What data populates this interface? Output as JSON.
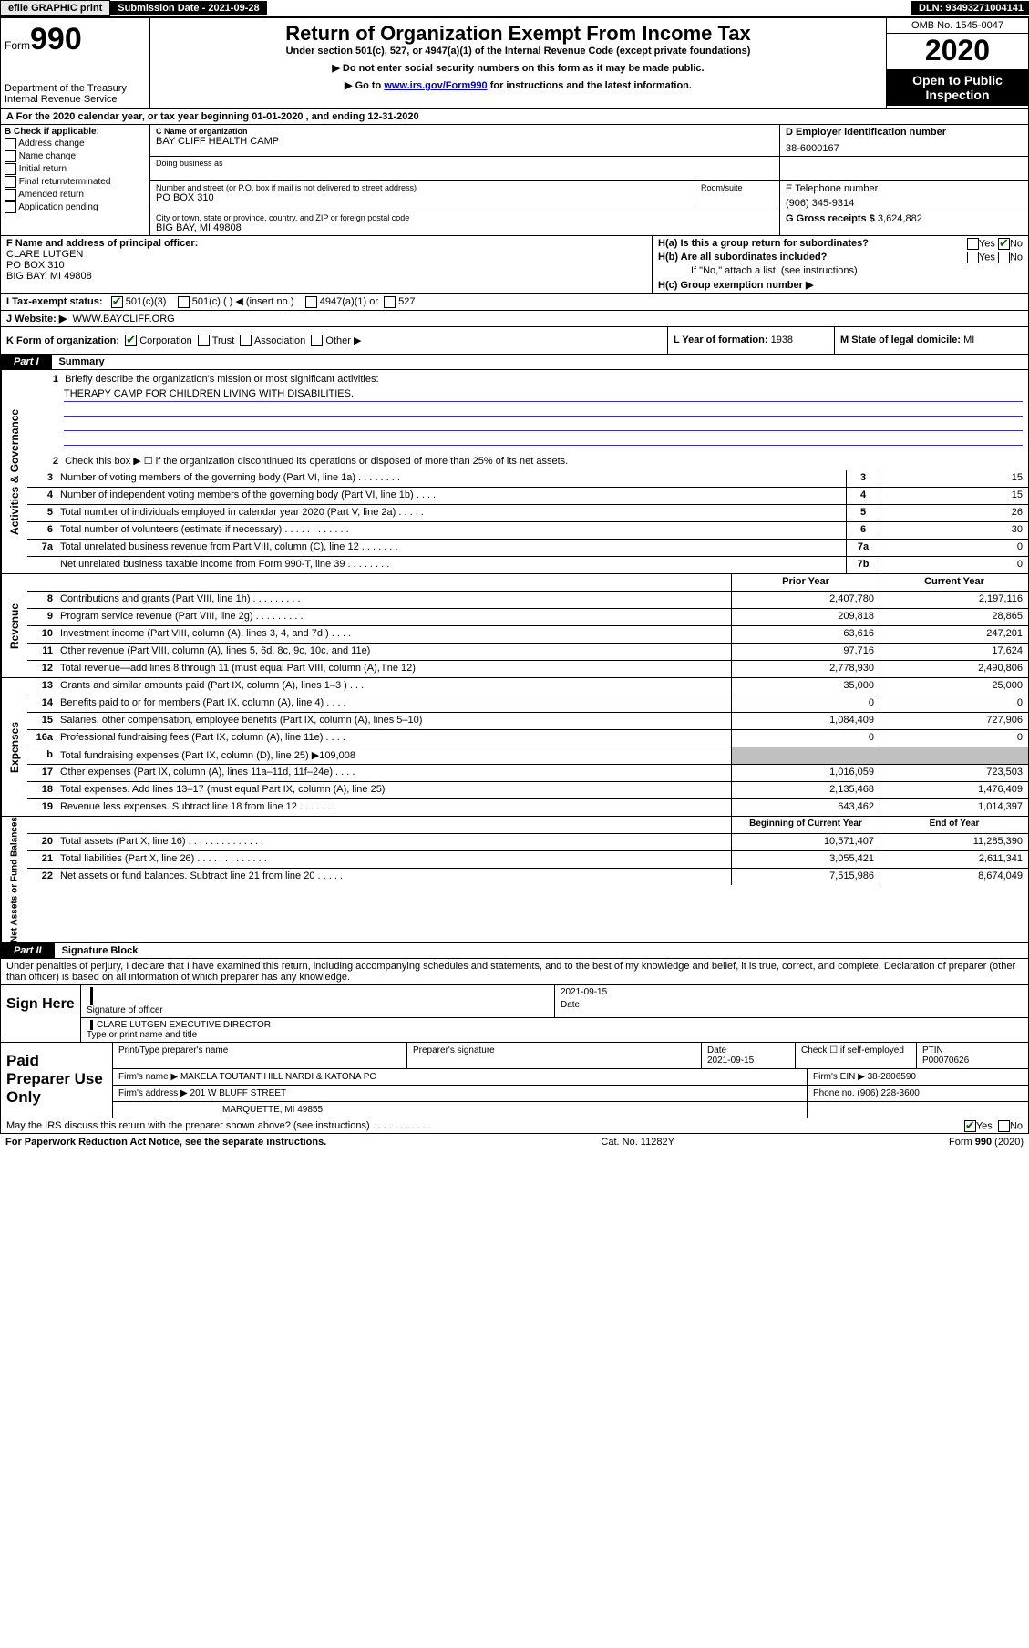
{
  "topbar": {
    "efile": "efile GRAPHIC print",
    "subdate_label": "Submission Date",
    "subdate": "- 2021-09-28",
    "dln_label": "DLN:",
    "dln": "93493271004141"
  },
  "header": {
    "form_label": "Form",
    "form_num": "990",
    "dept": "Department of the Treasury\nInternal Revenue Service",
    "title": "Return of Organization Exempt From Income Tax",
    "sub1": "Under section 501(c), 527, or 4947(a)(1) of the Internal Revenue Code (except private foundations)",
    "sub2": "▶ Do not enter social security numbers on this form as it may be made public.",
    "sub3_pre": "▶ Go to ",
    "sub3_link": "www.irs.gov/Form990",
    "sub3_post": " for instructions and the latest information.",
    "omb": "OMB No. 1545-0047",
    "year": "2020",
    "inspection": "Open to Public Inspection"
  },
  "rowA": "A For the 2020 calendar year, or tax year beginning 01-01-2020   , and ending 12-31-2020",
  "colB": {
    "label": "B Check if applicable:",
    "items": [
      "Address change",
      "Name change",
      "Initial return",
      "Final return/terminated",
      "Amended return",
      "Application pending"
    ]
  },
  "colC": {
    "name_label": "C Name of organization",
    "name": "BAY CLIFF HEALTH CAMP",
    "dba_label": "Doing business as",
    "addr_label": "Number and street (or P.O. box if mail is not delivered to street address)",
    "addr": "PO BOX 310",
    "room_label": "Room/suite",
    "city_label": "City or town, state or province, country, and ZIP or foreign postal code",
    "city": "BIG BAY, MI  49808"
  },
  "colD": {
    "label": "D Employer identification number",
    "value": "38-6000167"
  },
  "colE": {
    "label": "E Telephone number",
    "value": "(906) 345-9314"
  },
  "colG": {
    "label": "G Gross receipts $",
    "value": "3,624,882"
  },
  "colF": {
    "label": "F  Name and address of principal officer:",
    "name": "CLARE LUTGEN",
    "addr1": "PO BOX 310",
    "addr2": "BIG BAY, MI  49808"
  },
  "colH": {
    "a": "H(a)  Is this a group return for subordinates?",
    "b": "H(b)  Are all subordinates included?",
    "b_note": "If \"No,\" attach a list. (see instructions)",
    "c": "H(c)  Group exemption number ▶",
    "yes": "Yes",
    "no": "No"
  },
  "rowI": {
    "label": "I  Tax-exempt status:",
    "opts": [
      "501(c)(3)",
      "501(c) (   ) ◀ (insert no.)",
      "4947(a)(1) or",
      "527"
    ]
  },
  "rowJ": {
    "label": "J  Website: ▶",
    "value": "WWW.BAYCLIFF.ORG"
  },
  "rowK": {
    "label": "K Form of organization:",
    "opts": [
      "Corporation",
      "Trust",
      "Association",
      "Other ▶"
    ]
  },
  "rowL": {
    "label": "L Year of formation:",
    "value": "1938"
  },
  "rowM": {
    "label": "M State of legal domicile:",
    "value": "MI"
  },
  "part1": {
    "tab": "Part I",
    "title": "Summary"
  },
  "governance": {
    "vtab": "Activities & Governance",
    "line1": "Briefly describe the organization's mission or most significant activities:",
    "mission": "THERAPY CAMP FOR CHILDREN LIVING WITH DISABILITIES.",
    "line2": "Check this box ▶ ☐  if the organization discontinued its operations or disposed of more than 25% of its net assets.",
    "rows": [
      {
        "n": "3",
        "t": "Number of voting members of the governing body (Part VI, line 1a)   .   .   .   .   .   .   .   .",
        "c": "3",
        "v": "15"
      },
      {
        "n": "4",
        "t": "Number of independent voting members of the governing body (Part VI, line 1b)   .   .   .   .",
        "c": "4",
        "v": "15"
      },
      {
        "n": "5",
        "t": "Total number of individuals employed in calendar year 2020 (Part V, line 2a)   .   .   .   .   .",
        "c": "5",
        "v": "26"
      },
      {
        "n": "6",
        "t": "Total number of volunteers (estimate if necessary)   .   .   .   .   .   .   .   .   .   .   .   .",
        "c": "6",
        "v": "30"
      },
      {
        "n": "7a",
        "t": "Total unrelated business revenue from Part VIII, column (C), line 12   .   .   .   .   .   .   .",
        "c": "7a",
        "v": "0"
      },
      {
        "n": "",
        "t": "Net unrelated business taxable income from Form 990-T, line 39   .   .   .   .   .   .   .   .",
        "c": "7b",
        "v": "0"
      }
    ]
  },
  "revenue": {
    "vtab": "Revenue",
    "head_prior": "Prior Year",
    "head_current": "Current Year",
    "rows": [
      {
        "n": "8",
        "t": "Contributions and grants (Part VIII, line 1h)   .   .   .   .   .   .   .   .   .",
        "p": "2,407,780",
        "c": "2,197,116"
      },
      {
        "n": "9",
        "t": "Program service revenue (Part VIII, line 2g)   .   .   .   .   .   .   .   .   .",
        "p": "209,818",
        "c": "28,865"
      },
      {
        "n": "10",
        "t": "Investment income (Part VIII, column (A), lines 3, 4, and 7d )   .   .   .   .",
        "p": "63,616",
        "c": "247,201"
      },
      {
        "n": "11",
        "t": "Other revenue (Part VIII, column (A), lines 5, 6d, 8c, 9c, 10c, and 11e)",
        "p": "97,716",
        "c": "17,624"
      },
      {
        "n": "12",
        "t": "Total revenue—add lines 8 through 11 (must equal Part VIII, column (A), line 12)",
        "p": "2,778,930",
        "c": "2,490,806"
      }
    ]
  },
  "expenses": {
    "vtab": "Expenses",
    "rows": [
      {
        "n": "13",
        "t": "Grants and similar amounts paid (Part IX, column (A), lines 1–3 )   .   .   .",
        "p": "35,000",
        "c": "25,000"
      },
      {
        "n": "14",
        "t": "Benefits paid to or for members (Part IX, column (A), line 4)   .   .   .   .",
        "p": "0",
        "c": "0"
      },
      {
        "n": "15",
        "t": "Salaries, other compensation, employee benefits (Part IX, column (A), lines 5–10)",
        "p": "1,084,409",
        "c": "727,906"
      },
      {
        "n": "16a",
        "t": "Professional fundraising fees (Part IX, column (A), line 11e)   .   .   .   .",
        "p": "0",
        "c": "0"
      },
      {
        "n": "b",
        "t": "Total fundraising expenses (Part IX, column (D), line 25) ▶109,008",
        "p": "",
        "c": "",
        "shaded": true
      },
      {
        "n": "17",
        "t": "Other expenses (Part IX, column (A), lines 11a–11d, 11f–24e)   .   .   .   .",
        "p": "1,016,059",
        "c": "723,503"
      },
      {
        "n": "18",
        "t": "Total expenses. Add lines 13–17 (must equal Part IX, column (A), line 25)",
        "p": "2,135,468",
        "c": "1,476,409"
      },
      {
        "n": "19",
        "t": "Revenue less expenses. Subtract line 18 from line 12   .   .   .   .   .   .   .",
        "p": "643,462",
        "c": "1,014,397"
      }
    ]
  },
  "netassets": {
    "vtab": "Net Assets or Fund Balances",
    "head_begin": "Beginning of Current Year",
    "head_end": "End of Year",
    "rows": [
      {
        "n": "20",
        "t": "Total assets (Part X, line 16)   .   .   .   .   .   .   .   .   .   .   .   .   .   .",
        "p": "10,571,407",
        "c": "11,285,390"
      },
      {
        "n": "21",
        "t": "Total liabilities (Part X, line 26)   .   .   .   .   .   .   .   .   .   .   .   .   .",
        "p": "3,055,421",
        "c": "2,611,341"
      },
      {
        "n": "22",
        "t": "Net assets or fund balances. Subtract line 21 from line 20   .   .   .   .   .",
        "p": "7,515,986",
        "c": "8,674,049"
      }
    ]
  },
  "part2": {
    "tab": "Part II",
    "title": "Signature Block"
  },
  "penalties": "Under penalties of perjury, I declare that I have examined this return, including accompanying schedules and statements, and to the best of my knowledge and belief, it is true, correct, and complete. Declaration of preparer (other than officer) is based on all information of which preparer has any knowledge.",
  "sign": {
    "label": "Sign Here",
    "sig_label": "Signature of officer",
    "date": "2021-09-15",
    "date_label": "Date",
    "name": "CLARE LUTGEN  EXECUTIVE DIRECTOR",
    "name_label": "Type or print name and title"
  },
  "prep": {
    "label": "Paid Preparer Use Only",
    "h1": "Print/Type preparer's name",
    "h2": "Preparer's signature",
    "h3": "Date",
    "date": "2021-09-15",
    "h4": "Check ☐ if self-employed",
    "h5": "PTIN",
    "ptin": "P00070626",
    "firm_label": "Firm's name    ▶",
    "firm": "MAKELA TOUTANT HILL NARDI & KATONA PC",
    "ein_label": "Firm's EIN ▶",
    "ein": "38-2806590",
    "addr_label": "Firm's address ▶",
    "addr": "201 W BLUFF STREET",
    "city": "MARQUETTE, MI  49855",
    "phone_label": "Phone no.",
    "phone": "(906) 228-3600"
  },
  "discuss": "May the IRS discuss this return with the preparer shown above? (see instructions)   .   .   .   .   .   .   .   .   .   .   .",
  "footer": {
    "left": "For Paperwork Reduction Act Notice, see the separate instructions.",
    "center": "Cat. No. 11282Y",
    "right": "Form 990 (2020)"
  }
}
